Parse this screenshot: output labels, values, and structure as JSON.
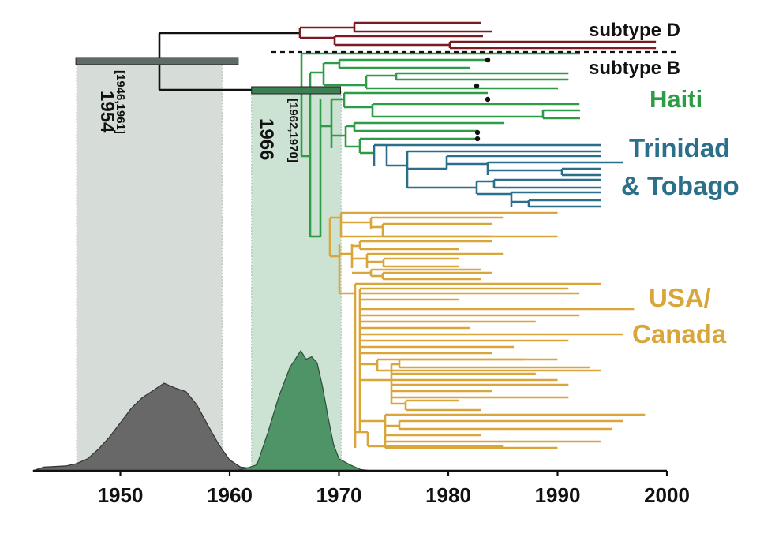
{
  "chart_data": {
    "type": "phylogenetic_tree_with_density",
    "x_axis": {
      "min": 1942,
      "max": 2000,
      "ticks": [
        1950,
        1960,
        1970,
        1980,
        1990,
        2000
      ]
    },
    "colors": {
      "subtype_d": "#7a1a22",
      "haiti": "#2e9b47",
      "trinidad_tobago": "#2c6f8a",
      "usa_canada": "#d9a63c",
      "root": "#111111",
      "interval_1954": "#5f6b65",
      "interval_1966": "#3c7f52",
      "density_1954": "#686868",
      "density_1966": "#4e9466"
    },
    "intervals": [
      {
        "label": "1954",
        "range_label": "[1946,1961]",
        "median": 1954,
        "lower": 1946,
        "upper": 1961,
        "shade_upper": 1959.3
      },
      {
        "label": "1966",
        "range_label": "[1962,1970]",
        "median": 1966,
        "lower": 1962,
        "upper": 1970,
        "shade_upper": 1970.2
      }
    ],
    "clades": [
      {
        "name": "subtype D",
        "label": "subtype D"
      },
      {
        "name": "subtype B",
        "label": "subtype B"
      },
      {
        "name": "Haiti",
        "label": "Haiti"
      },
      {
        "name": "Trinidad & Tobago",
        "label_lines": [
          "Trinidad",
          "& Tobago"
        ]
      },
      {
        "name": "USA/Canada",
        "label_lines": [
          "USA/",
          "Canada"
        ]
      }
    ],
    "density_1954": [
      [
        1942,
        0
      ],
      [
        1943,
        0.03
      ],
      [
        1945,
        0.04
      ],
      [
        1946,
        0.06
      ],
      [
        1947,
        0.1
      ],
      [
        1948,
        0.18
      ],
      [
        1949,
        0.28
      ],
      [
        1950,
        0.4
      ],
      [
        1951,
        0.52
      ],
      [
        1952,
        0.61
      ],
      [
        1953,
        0.67
      ],
      [
        1954,
        0.73
      ],
      [
        1955,
        0.69
      ],
      [
        1956,
        0.66
      ],
      [
        1957,
        0.55
      ],
      [
        1958,
        0.38
      ],
      [
        1959,
        0.22
      ],
      [
        1960,
        0.09
      ],
      [
        1961,
        0.03
      ],
      [
        1962,
        0.02
      ],
      [
        1963,
        0
      ]
    ],
    "density_1966": [
      [
        1960.5,
        0
      ],
      [
        1961.5,
        0.02
      ],
      [
        1962.5,
        0.05
      ],
      [
        1963.5,
        0.32
      ],
      [
        1964.5,
        0.62
      ],
      [
        1965.5,
        0.86
      ],
      [
        1966.5,
        1.0
      ],
      [
        1967,
        0.93
      ],
      [
        1967.5,
        0.95
      ],
      [
        1968,
        0.9
      ],
      [
        1968.5,
        0.7
      ],
      [
        1969,
        0.45
      ],
      [
        1969.5,
        0.22
      ],
      [
        1970,
        0.1
      ],
      [
        1971,
        0.05
      ],
      [
        1972,
        0.01
      ],
      [
        1973,
        0
      ]
    ],
    "tips_subtype_d": [
      1983,
      1984,
      1983,
      1999,
      1999
    ],
    "tips_haiti": [
      1992,
      1991,
      1991,
      1992,
      1990,
      1983,
      1992,
      1992,
      1985,
      1983
    ],
    "tips_trinidad": [
      1994,
      1994,
      1994,
      1996,
      1994,
      1994,
      1994,
      1994,
      1994,
      1994
    ],
    "tips_usa_canada": [
      1990,
      1985,
      1984,
      1984,
      1990,
      1984,
      1981,
      1985,
      1981,
      1983,
      1984,
      1983,
      1994,
      1991,
      1992,
      1981,
      1997,
      1992,
      1988,
      1982,
      1996,
      1991,
      1986,
      1984,
      1987,
      1994,
      1990,
      1993,
      1988,
      1990,
      1991,
      1984,
      1991,
      1991,
      1981,
      1983,
      1998,
      1996,
      1995,
      1983,
      1994,
      1990,
      1985,
      1983,
      1993
    ]
  }
}
